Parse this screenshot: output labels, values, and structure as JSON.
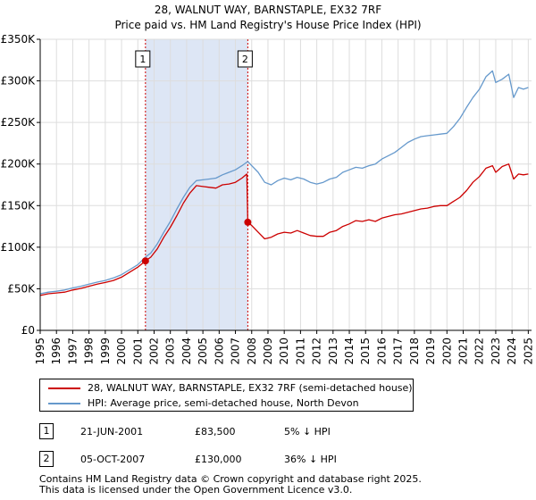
{
  "chart_data": {
    "type": "line",
    "title": "28, WALNUT WAY, BARNSTAPLE, EX32 7RF",
    "subtitle": "Price paid vs. HM Land Registry's House Price Index (HPI)",
    "x_range": [
      1995,
      2025.2
    ],
    "ylim": [
      0,
      350000
    ],
    "y_ticks": [
      0,
      50000,
      100000,
      150000,
      200000,
      250000,
      300000,
      350000
    ],
    "y_tick_labels": [
      "£0",
      "£50K",
      "£100K",
      "£150K",
      "£200K",
      "£250K",
      "£300K",
      "£350K"
    ],
    "x_ticks": [
      1995,
      1996,
      1997,
      1998,
      1999,
      2000,
      2001,
      2002,
      2003,
      2004,
      2005,
      2006,
      2007,
      2008,
      2009,
      2010,
      2011,
      2012,
      2013,
      2014,
      2015,
      2016,
      2017,
      2018,
      2019,
      2020,
      2021,
      2022,
      2023,
      2024,
      2025
    ],
    "x_tick_labels": [
      "1995",
      "1996",
      "1997",
      "1998",
      "1999",
      "2000",
      "2001",
      "2002",
      "2003",
      "2004",
      "2005",
      "2006",
      "2007",
      "2008",
      "2009",
      "2010",
      "2011",
      "2012",
      "2013",
      "2014",
      "2015",
      "2016",
      "2017",
      "2018",
      "2019",
      "2020",
      "2021",
      "2022",
      "2023",
      "2024",
      "2025"
    ],
    "grid": true,
    "shaded_period": [
      2001.47,
      2007.76
    ],
    "series": [
      {
        "name": "28, WALNUT WAY, BARNSTAPLE, EX32 7RF (semi-detached house)",
        "color": "#cc0000",
        "x": [
          1995.0,
          1995.5,
          1996.0,
          1996.5,
          1997.0,
          1997.5,
          1998.0,
          1998.5,
          1999.0,
          1999.5,
          2000.0,
          2000.5,
          2001.0,
          2001.47,
          2001.8,
          2002.2,
          2002.6,
          2003.0,
          2003.4,
          2003.8,
          2004.2,
          2004.6,
          2005.0,
          2005.4,
          2005.8,
          2006.2,
          2006.6,
          2007.0,
          2007.4,
          2007.7,
          2007.76,
          2008.0,
          2008.4,
          2008.8,
          2009.2,
          2009.6,
          2010.0,
          2010.4,
          2010.8,
          2011.2,
          2011.6,
          2012.0,
          2012.4,
          2012.8,
          2013.2,
          2013.6,
          2014.0,
          2014.4,
          2014.8,
          2015.2,
          2015.6,
          2016.0,
          2016.4,
          2016.8,
          2017.2,
          2017.6,
          2018.0,
          2018.4,
          2018.8,
          2019.2,
          2019.6,
          2020.0,
          2020.4,
          2020.8,
          2021.2,
          2021.6,
          2022.0,
          2022.4,
          2022.8,
          2023.0,
          2023.4,
          2023.8,
          2024.1,
          2024.4,
          2024.7,
          2025.0
        ],
        "y": [
          42000,
          44000,
          45000,
          46000,
          48500,
          50500,
          53000,
          55500,
          57500,
          60000,
          64000,
          70000,
          76000,
          83500,
          88000,
          98000,
          112000,
          124000,
          138000,
          153000,
          165000,
          174000,
          173000,
          172000,
          171000,
          175000,
          176000,
          178000,
          183000,
          188000,
          130000,
          126000,
          118000,
          110000,
          112000,
          116000,
          118000,
          117000,
          120000,
          117000,
          114000,
          113000,
          113000,
          118000,
          120000,
          125000,
          128000,
          132000,
          131000,
          133000,
          131000,
          135000,
          137000,
          139000,
          140000,
          142000,
          144000,
          146000,
          147000,
          149000,
          150000,
          150000,
          155000,
          160000,
          168000,
          178000,
          185000,
          195000,
          198000,
          190000,
          197000,
          200000,
          182000,
          188000,
          187000,
          188000
        ]
      },
      {
        "name": "HPI: Average price, semi-detached house, North Devon",
        "color": "#6699cc",
        "x": [
          1995.0,
          1995.5,
          1996.0,
          1996.5,
          1997.0,
          1997.5,
          1998.0,
          1998.5,
          1999.0,
          1999.5,
          2000.0,
          2000.5,
          2001.0,
          2001.47,
          2001.8,
          2002.2,
          2002.6,
          2003.0,
          2003.4,
          2003.8,
          2004.2,
          2004.6,
          2005.0,
          2005.4,
          2005.8,
          2006.2,
          2006.6,
          2007.0,
          2007.4,
          2007.76,
          2008.0,
          2008.4,
          2008.8,
          2009.2,
          2009.6,
          2010.0,
          2010.4,
          2010.8,
          2011.2,
          2011.6,
          2012.0,
          2012.4,
          2012.8,
          2013.2,
          2013.6,
          2014.0,
          2014.4,
          2014.8,
          2015.2,
          2015.6,
          2016.0,
          2016.4,
          2016.8,
          2017.2,
          2017.6,
          2018.0,
          2018.4,
          2018.8,
          2019.2,
          2019.6,
          2020.0,
          2020.4,
          2020.8,
          2021.2,
          2021.6,
          2022.0,
          2022.4,
          2022.8,
          2023.0,
          2023.4,
          2023.8,
          2024.1,
          2024.4,
          2024.7,
          2025.0
        ],
        "y": [
          44000,
          46000,
          47000,
          48500,
          51000,
          53000,
          55500,
          58000,
          60000,
          63000,
          67000,
          73000,
          79000,
          88000,
          93000,
          104000,
          118000,
          131000,
          146000,
          160000,
          172000,
          180000,
          181000,
          182000,
          183000,
          187000,
          190000,
          193000,
          198000,
          203000,
          198000,
          190000,
          178000,
          175000,
          180000,
          183000,
          181000,
          184000,
          182000,
          178000,
          176000,
          178000,
          182000,
          184000,
          190000,
          193000,
          196000,
          195000,
          198000,
          200000,
          206000,
          210000,
          214000,
          220000,
          226000,
          230000,
          233000,
          234000,
          235000,
          236000,
          237000,
          245000,
          255000,
          268000,
          280000,
          290000,
          305000,
          312000,
          298000,
          302000,
          308000,
          280000,
          292000,
          290000,
          292000
        ]
      }
    ],
    "sales": [
      {
        "label": "1",
        "x": 2001.47,
        "y": 83500
      },
      {
        "label": "2",
        "x": 2007.76,
        "y": 130000
      }
    ]
  },
  "legend": {
    "property_label": "28, WALNUT WAY, BARNSTAPLE, EX32 7RF (semi-detached house)",
    "hpi_label": "HPI: Average price, semi-detached house, North Devon",
    "property_color": "#cc0000",
    "hpi_color": "#6699cc"
  },
  "transactions": [
    {
      "num": "1",
      "date": "21-JUN-2001",
      "price": "£83,500",
      "hpi": "5% ↓ HPI"
    },
    {
      "num": "2",
      "date": "05-OCT-2007",
      "price": "£130,000",
      "hpi": "36% ↓ HPI"
    }
  ],
  "footer": {
    "line1": "Contains HM Land Registry data © Crown copyright and database right 2025.",
    "line2": "This data is licensed under the Open Government Licence v3.0."
  }
}
